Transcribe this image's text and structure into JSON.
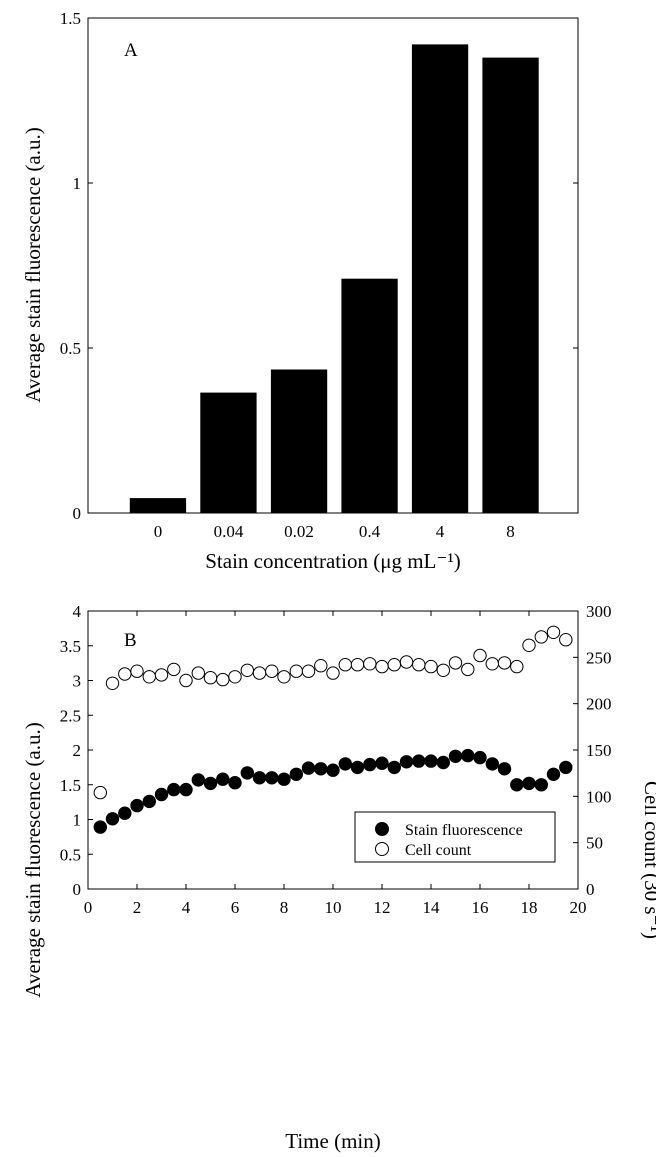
{
  "chart_data": [
    {
      "type": "bar",
      "panel_label": "A",
      "categories": [
        "0",
        "0.04",
        "0.02",
        "0.4",
        "4",
        "8"
      ],
      "values": [
        0.045,
        0.365,
        0.435,
        0.71,
        1.42,
        1.38
      ],
      "xlabel": "Stain concentration (μg mL⁻¹)",
      "ylabel": "Average stain fluorescence (a.u.)",
      "ylim": [
        0,
        1.5
      ],
      "yticks": [
        0,
        0.5,
        1,
        1.5
      ],
      "ytick_labels": [
        "0",
        "0.5",
        "1",
        "1.5"
      ],
      "bar_color": "#000000"
    },
    {
      "type": "scatter",
      "panel_label": "B",
      "x": [
        0.5,
        1,
        1.5,
        2,
        2.5,
        3,
        3.5,
        4,
        4.5,
        5,
        5.5,
        6,
        6.5,
        7,
        7.5,
        8,
        8.5,
        9,
        9.5,
        10,
        10.5,
        11,
        11.5,
        12,
        12.5,
        13,
        13.5,
        14,
        14.5,
        15,
        15.5,
        16,
        16.5,
        17,
        17.5,
        18,
        18.5,
        19,
        19.5
      ],
      "series": [
        {
          "name": "Stain fluorescence",
          "axis": "left",
          "marker": "filled",
          "values": [
            0.89,
            1.01,
            1.09,
            1.2,
            1.26,
            1.36,
            1.43,
            1.43,
            1.57,
            1.52,
            1.58,
            1.53,
            1.67,
            1.6,
            1.6,
            1.58,
            1.65,
            1.74,
            1.73,
            1.71,
            1.8,
            1.75,
            1.79,
            1.81,
            1.75,
            1.83,
            1.84,
            1.84,
            1.82,
            1.91,
            1.92,
            1.89,
            1.8,
            1.73,
            1.5,
            1.52,
            1.5,
            1.65,
            1.75
          ]
        },
        {
          "name": "Cell count",
          "axis": "right",
          "marker": "open",
          "values": [
            104,
            222,
            232,
            235,
            229,
            231,
            237,
            225,
            233,
            228,
            226,
            229,
            236,
            233,
            235,
            229,
            235,
            235,
            241,
            233,
            242,
            242,
            243,
            240,
            242,
            245,
            242,
            240,
            236,
            244,
            237,
            252,
            243,
            244,
            240,
            263,
            272,
            277,
            269
          ]
        }
      ],
      "xlabel": "Time (min)",
      "ylabel_left": "Average stain fluorescence (a.u.)",
      "ylabel_right": "Cell count (30 s⁻¹)",
      "xlim": [
        0,
        20
      ],
      "xticks": [
        0,
        2,
        4,
        6,
        8,
        10,
        12,
        14,
        16,
        18,
        20
      ],
      "ylim_left": [
        0,
        4
      ],
      "yticks_left": [
        0,
        0.5,
        1,
        1.5,
        2,
        2.5,
        3,
        3.5,
        4
      ],
      "ytick_labels_left": [
        "0",
        "0.5",
        "1",
        "1.5",
        "2",
        "2.5",
        "3",
        "3.5",
        "4"
      ],
      "ylim_right": [
        0,
        300
      ],
      "yticks_right": [
        0,
        50,
        100,
        150,
        200,
        250,
        300
      ],
      "legend_position": "bottom-right"
    }
  ]
}
